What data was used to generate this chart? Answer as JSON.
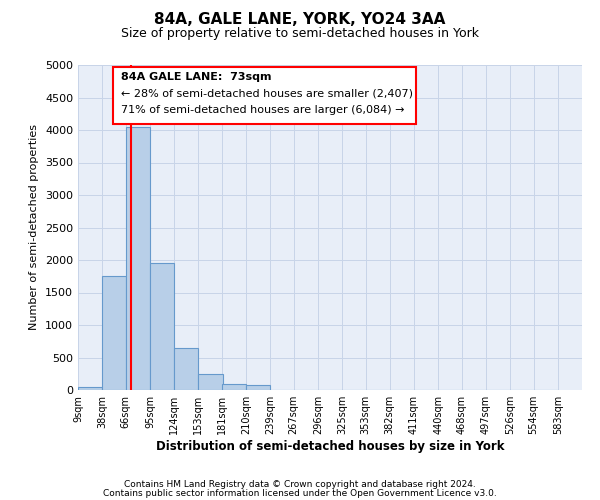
{
  "title": "84A, GALE LANE, YORK, YO24 3AA",
  "subtitle": "Size of property relative to semi-detached houses in York",
  "xlabel": "Distribution of semi-detached houses by size in York",
  "ylabel": "Number of semi-detached properties",
  "bar_left_edges": [
    9,
    38,
    66,
    95,
    124,
    153,
    181,
    210,
    239,
    267,
    296,
    325,
    353,
    382,
    411,
    440,
    468,
    497,
    526,
    554
  ],
  "bar_heights": [
    50,
    1750,
    4050,
    1950,
    650,
    250,
    100,
    70,
    0,
    0,
    0,
    0,
    0,
    0,
    0,
    0,
    0,
    0,
    0,
    0
  ],
  "bin_width": 29,
  "bar_color": "#b8cfe8",
  "bar_edge_color": "#6699cc",
  "red_line_x": 73,
  "ylim": [
    0,
    5000
  ],
  "yticks": [
    0,
    500,
    1000,
    1500,
    2000,
    2500,
    3000,
    3500,
    4000,
    4500,
    5000
  ],
  "xtick_labels": [
    "9sqm",
    "38sqm",
    "66sqm",
    "95sqm",
    "124sqm",
    "153sqm",
    "181sqm",
    "210sqm",
    "239sqm",
    "267sqm",
    "296sqm",
    "325sqm",
    "353sqm",
    "382sqm",
    "411sqm",
    "440sqm",
    "468sqm",
    "497sqm",
    "526sqm",
    "554sqm",
    "583sqm"
  ],
  "grid_color": "#c8d4e8",
  "background_color": "#e8eef8",
  "annotation_line1": "84A GALE LANE:  73sqm",
  "annotation_line2": "← 28% of semi-detached houses are smaller (2,407)",
  "annotation_line3": "71% of semi-detached houses are larger (6,084) →",
  "footer_line1": "Contains HM Land Registry data © Crown copyright and database right 2024.",
  "footer_line2": "Contains public sector information licensed under the Open Government Licence v3.0."
}
